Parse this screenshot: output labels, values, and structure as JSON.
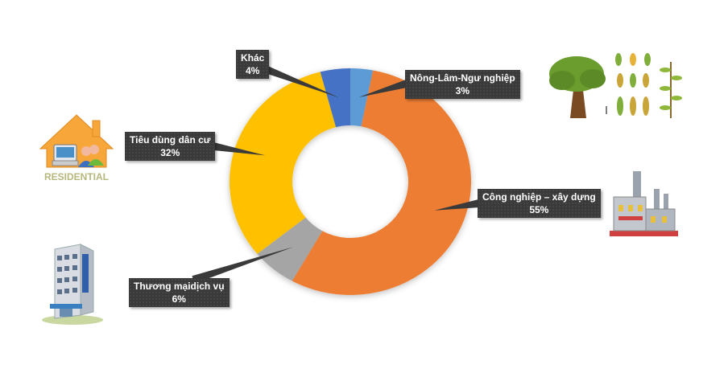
{
  "chart_data": {
    "type": "pie",
    "variant": "donut",
    "categories": [
      "Nông-Lâm-Ngư nghiệp",
      "Công nghiệp – xây dựng",
      "Thương mạidịch vụ",
      "Tiêu dùng dân cư",
      "Khác"
    ],
    "values": [
      3,
      55,
      6,
      32,
      4
    ],
    "value_labels": [
      "3%",
      "55%",
      "6%",
      "32%",
      "4%"
    ],
    "colors": [
      "#5b9bd5",
      "#ed7d31",
      "#a5a5a5",
      "#ffc000",
      "#4472c4"
    ],
    "title": "",
    "legend": "none"
  },
  "icons": {
    "residential": "residential-house-icon",
    "residential_text": "RESIDENTIAL",
    "hotel": "hotel-building-icon",
    "agriculture": "tree-and-crops-icon",
    "industry": "factory-icon"
  }
}
